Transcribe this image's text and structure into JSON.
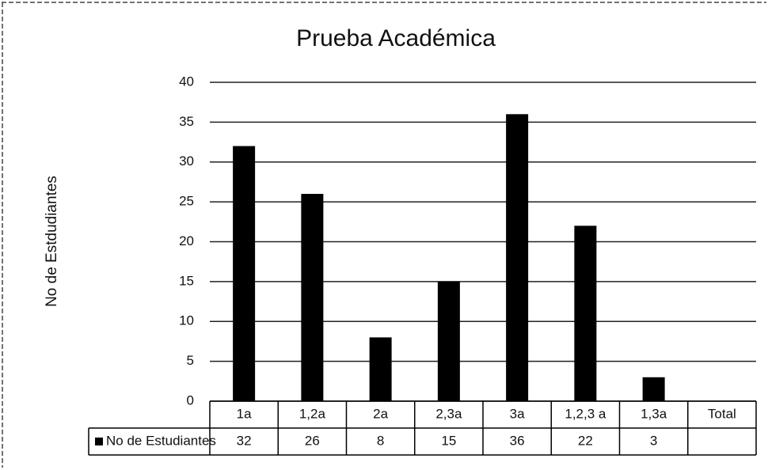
{
  "chart_data": {
    "type": "bar",
    "title": "Prueba Académica",
    "y_label": "No de Estdudiantes",
    "categories": [
      "1a",
      "1,2a",
      "2a",
      "2,3a",
      "3a",
      "1,2,3 a",
      "1,3a",
      "Total"
    ],
    "series": [
      {
        "name": "No de Estudiantes",
        "color": "#000000",
        "values": [
          32,
          26,
          8,
          15,
          36,
          22,
          3,
          null
        ]
      }
    ],
    "ylim": [
      0,
      40
    ],
    "yticks": [
      0,
      5,
      10,
      15,
      20,
      25,
      30,
      35,
      40
    ],
    "grid": true,
    "data_table": true
  }
}
